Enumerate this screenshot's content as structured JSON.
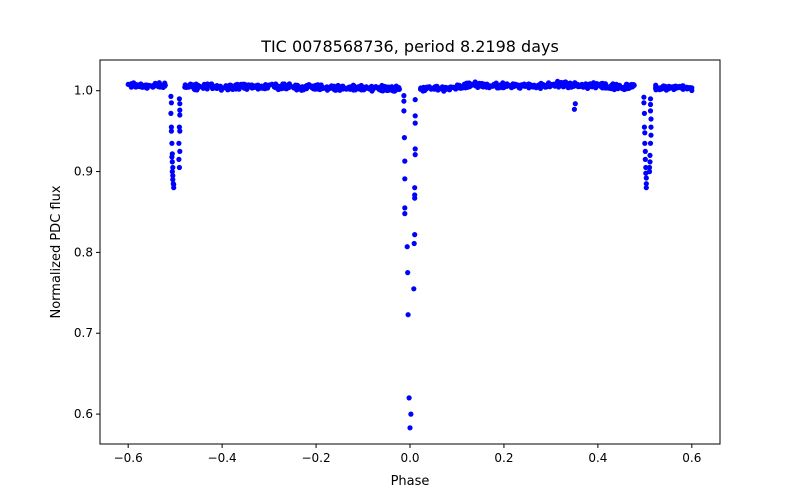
{
  "chart_data": {
    "type": "scatter",
    "title": "TIC 0078568736, period 8.2198 days",
    "xlabel": "Phase",
    "ylabel": "Normalized PDC flux",
    "xlim": [
      -0.66,
      0.66
    ],
    "ylim": [
      0.563,
      1.038
    ],
    "xticks": [
      -0.6,
      -0.4,
      -0.2,
      0.0,
      0.2,
      0.4,
      0.6
    ],
    "xtick_labels": [
      "−0.6",
      "−0.4",
      "−0.2",
      "0.0",
      "0.2",
      "0.4",
      "0.6"
    ],
    "yticks": [
      0.6,
      0.7,
      0.8,
      0.9,
      1.0
    ],
    "ytick_labels": [
      "0.6",
      "0.7",
      "0.8",
      "0.9",
      "1.0"
    ],
    "grid": false,
    "marker_color": "#0000ff",
    "baseline": {
      "phase": [
        -0.6,
        -0.58,
        -0.56,
        -0.54,
        -0.52,
        -0.48,
        -0.46,
        -0.44,
        -0.42,
        -0.4,
        -0.38,
        -0.36,
        -0.34,
        -0.32,
        -0.3,
        -0.28,
        -0.26,
        -0.24,
        -0.22,
        -0.2,
        -0.18,
        -0.16,
        -0.14,
        -0.12,
        -0.1,
        -0.08,
        -0.06,
        -0.04,
        -0.02,
        0.02,
        0.04,
        0.06,
        0.08,
        0.1,
        0.12,
        0.14,
        0.16,
        0.18,
        0.2,
        0.22,
        0.24,
        0.26,
        0.28,
        0.3,
        0.32,
        0.34,
        0.36,
        0.38,
        0.4,
        0.42,
        0.44,
        0.46,
        0.48,
        0.52,
        0.54,
        0.56,
        0.58,
        0.6
      ],
      "flux": [
        1.007,
        1.006,
        1.006,
        1.006,
        1.006,
        1.005,
        1.005,
        1.005,
        1.005,
        1.004,
        1.005,
        1.005,
        1.005,
        1.005,
        1.005,
        1.005,
        1.005,
        1.004,
        1.004,
        1.004,
        1.004,
        1.004,
        1.004,
        1.004,
        1.003,
        1.003,
        1.003,
        1.002,
        1.002,
        1.002,
        1.003,
        1.003,
        1.003,
        1.004,
        1.006,
        1.008,
        1.007,
        1.006,
        1.006,
        1.006,
        1.006,
        1.006,
        1.006,
        1.007,
        1.008,
        1.007,
        1.006,
        1.006,
        1.007,
        1.006,
        1.005,
        1.005,
        1.004,
        1.004,
        1.004,
        1.004,
        1.004,
        1.003
      ],
      "scatter": 0.004
    },
    "points": [
      [
        -0.013,
        0.994
      ],
      [
        -0.013,
        0.987
      ],
      [
        -0.013,
        0.975
      ],
      [
        -0.012,
        0.942
      ],
      [
        -0.011,
        0.913
      ],
      [
        -0.011,
        0.891
      ],
      [
        -0.011,
        0.855
      ],
      [
        -0.011,
        0.848
      ],
      [
        -0.006,
        0.807
      ],
      [
        -0.005,
        0.775
      ],
      [
        -0.004,
        0.723
      ],
      [
        -0.002,
        0.62
      ],
      [
        0.002,
        0.6
      ],
      [
        0.0,
        0.583
      ],
      [
        0.011,
        0.989
      ],
      [
        0.011,
        0.969
      ],
      [
        0.011,
        0.96
      ],
      [
        0.011,
        0.928
      ],
      [
        0.011,
        0.921
      ],
      [
        0.01,
        0.88
      ],
      [
        0.01,
        0.871
      ],
      [
        0.01,
        0.867
      ],
      [
        0.01,
        0.822
      ],
      [
        0.009,
        0.811
      ],
      [
        0.008,
        0.755
      ],
      [
        -0.509,
        0.993
      ],
      [
        -0.508,
        0.985
      ],
      [
        -0.509,
        0.972
      ],
      [
        -0.508,
        0.955
      ],
      [
        -0.508,
        0.95
      ],
      [
        -0.507,
        0.935
      ],
      [
        -0.506,
        0.922
      ],
      [
        -0.507,
        0.918
      ],
      [
        -0.506,
        0.912
      ],
      [
        -0.505,
        0.905
      ],
      [
        -0.506,
        0.9
      ],
      [
        -0.505,
        0.895
      ],
      [
        -0.505,
        0.89
      ],
      [
        -0.504,
        0.885
      ],
      [
        -0.503,
        0.88
      ],
      [
        -0.503,
        0.884
      ],
      [
        -0.491,
        0.99
      ],
      [
        -0.49,
        0.984
      ],
      [
        -0.49,
        0.976
      ],
      [
        -0.49,
        0.97
      ],
      [
        -0.491,
        0.955
      ],
      [
        -0.49,
        0.95
      ],
      [
        -0.492,
        0.935
      ],
      [
        -0.49,
        0.925
      ],
      [
        -0.492,
        0.915
      ],
      [
        -0.491,
        0.905
      ],
      [
        0.498,
        0.992
      ],
      [
        0.498,
        0.985
      ],
      [
        0.499,
        0.972
      ],
      [
        0.499,
        0.955
      ],
      [
        0.5,
        0.948
      ],
      [
        0.5,
        0.935
      ],
      [
        0.501,
        0.925
      ],
      [
        0.501,
        0.915
      ],
      [
        0.502,
        0.905
      ],
      [
        0.502,
        0.898
      ],
      [
        0.503,
        0.892
      ],
      [
        0.503,
        0.885
      ],
      [
        0.503,
        0.88
      ],
      [
        0.512,
        0.99
      ],
      [
        0.512,
        0.983
      ],
      [
        0.512,
        0.975
      ],
      [
        0.513,
        0.965
      ],
      [
        0.513,
        0.955
      ],
      [
        0.513,
        0.945
      ],
      [
        0.512,
        0.935
      ],
      [
        0.511,
        0.92
      ],
      [
        0.511,
        0.912
      ],
      [
        0.51,
        0.905
      ],
      [
        0.51,
        0.9
      ],
      [
        0.352,
        0.984
      ],
      [
        0.35,
        0.977
      ]
    ]
  }
}
